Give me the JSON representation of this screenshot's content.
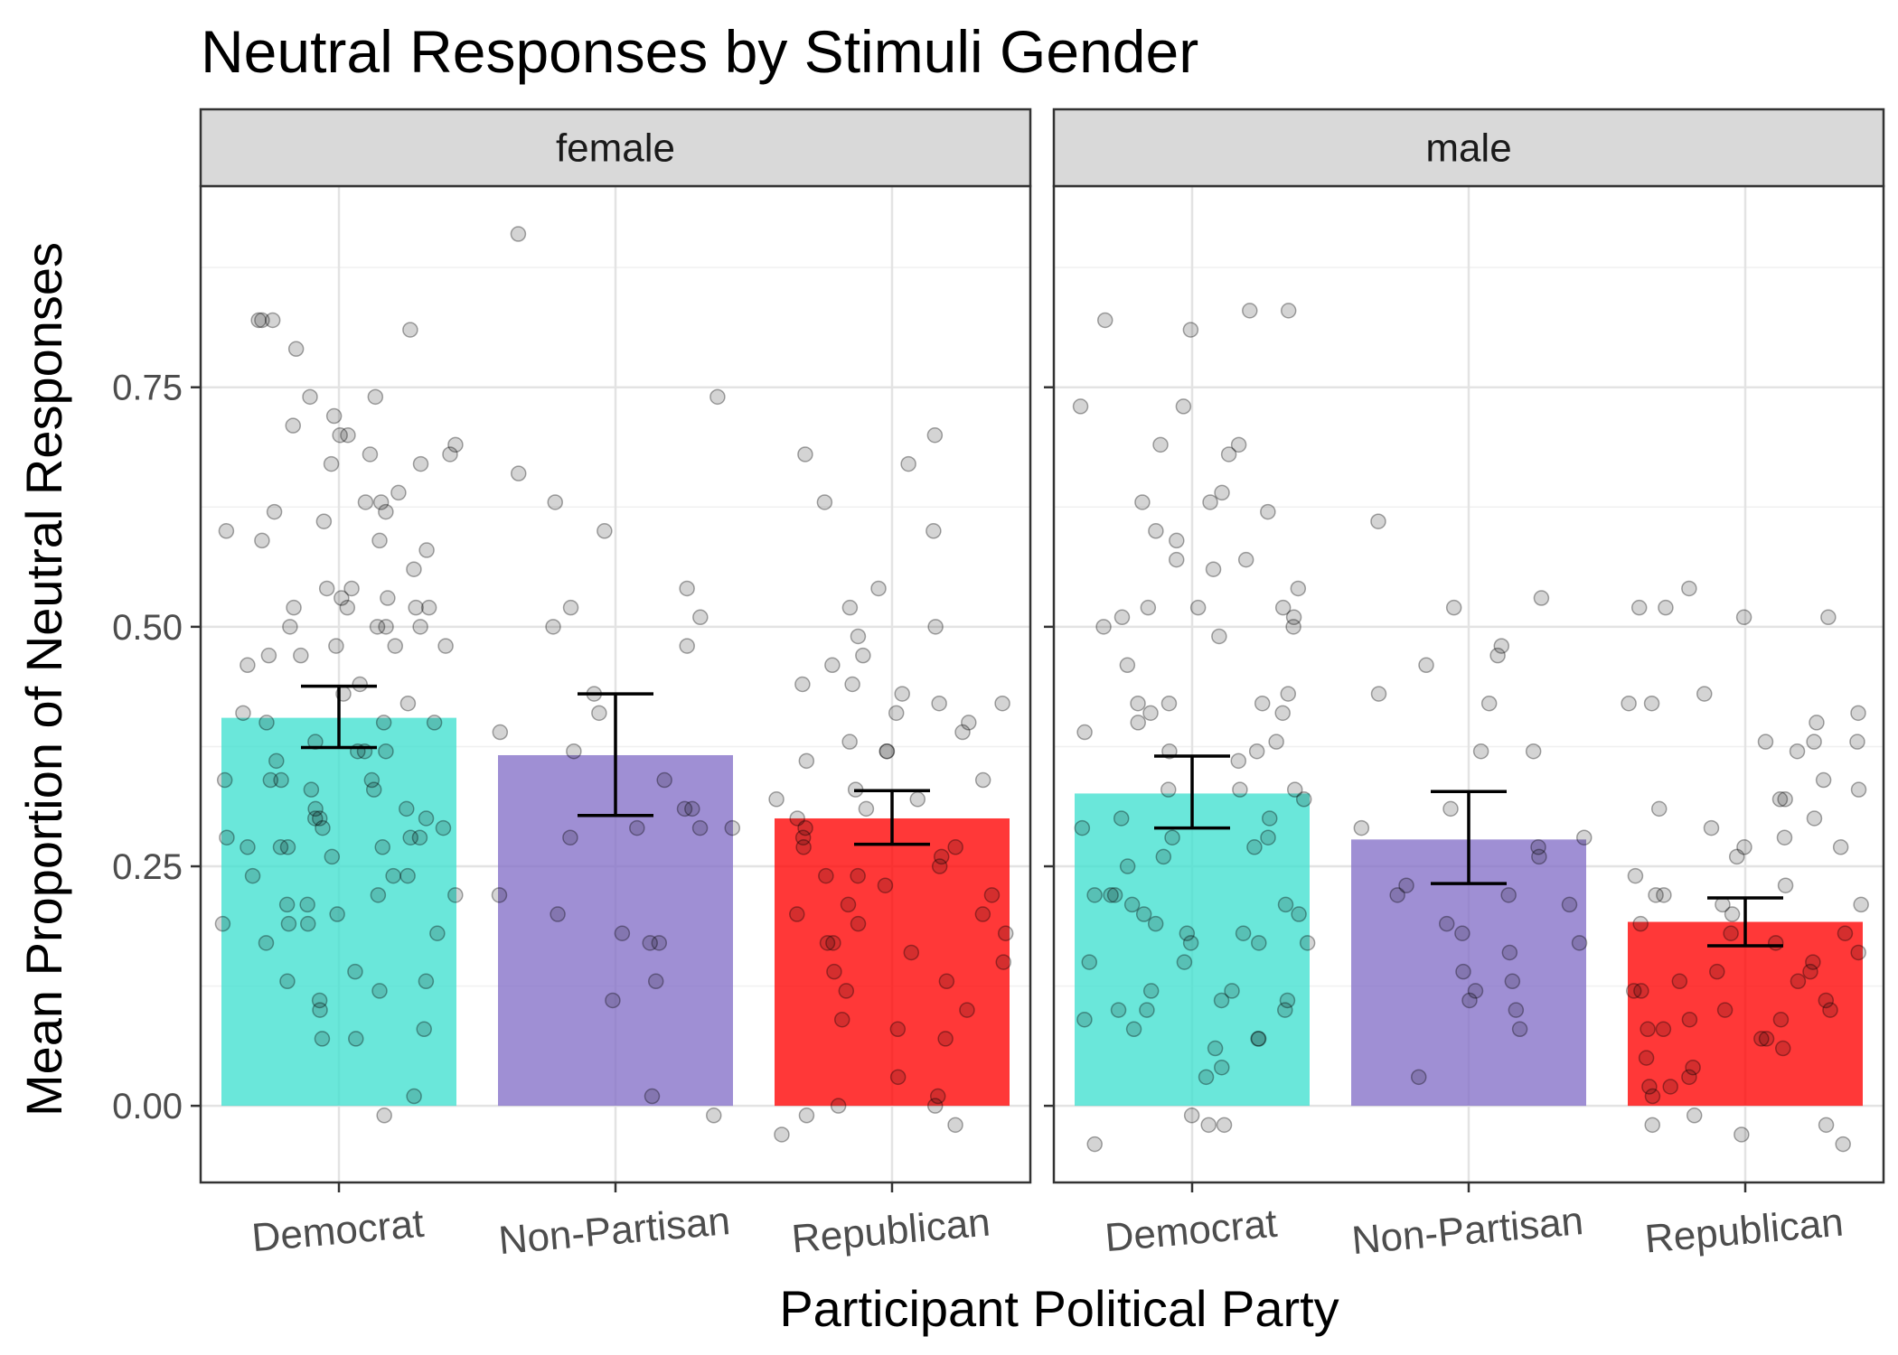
{
  "chart_data": {
    "type": "bar",
    "title": "Neutral Responses by Stimuli Gender",
    "xlabel": "Participant Political Party",
    "ylabel": "Mean Proportion of Neutral Responses",
    "ylim": [
      -0.08,
      0.96
    ],
    "y_ticks": [
      "0.00",
      "0.25",
      "0.50",
      "0.75"
    ],
    "y_tick_values": [
      0,
      0.25,
      0.5,
      0.75
    ],
    "grid": true,
    "legend": "none",
    "overlay": "jittered-points",
    "categories": [
      "Democrat",
      "Non-Partisan",
      "Republican"
    ],
    "colors": {
      "Democrat": "#40E0D0",
      "Non-Partisan": "#8470C8",
      "Republican": "#FF0000"
    },
    "facets": [
      {
        "label": "female",
        "values": [
          0.405,
          0.366,
          0.3
        ],
        "error_low": [
          0.374,
          0.303,
          0.273
        ],
        "error_high": [
          0.438,
          0.43,
          0.329
        ],
        "points": [
          [
            0.74,
            0.71,
            0.68,
            0.69,
            0.63,
            0.59,
            0.59,
            0.52,
            0.53,
            0.52,
            0.48,
            0.47,
            0.42,
            0.4,
            0.37,
            0.36,
            0.34,
            0.31,
            0.3,
            0.28,
            0.27,
            0.26,
            0.24,
            0.21,
            0.21,
            0.19,
            0.18,
            0.13,
            0.1,
            0.07,
            0.01,
            0.82,
            0.82,
            0.79,
            0.74,
            0.7,
            0.68,
            0.67,
            0.64,
            0.62,
            0.61,
            0.58,
            0.56,
            0.52,
            0.52,
            0.5,
            0.5,
            0.46,
            0.44,
            0.41,
            0.4,
            0.38,
            0.37,
            0.34,
            0.33,
            0.31,
            0.3,
            0.29,
            0.29,
            0.28,
            0.27,
            0.24,
            0.22,
            0.19,
            0.19,
            0.13,
            0.11,
            0.82,
            0.81,
            0.72,
            0.7,
            0.67,
            0.63,
            0.62,
            0.6,
            0.54,
            0.54,
            0.53,
            0.5,
            0.5,
            0.48,
            0.48,
            0.47,
            0.43,
            0.4,
            0.37,
            0.34,
            0.34,
            0.33,
            0.3,
            0.28,
            0.27,
            0.27,
            0.24,
            0.22,
            0.2,
            0.17,
            0.14,
            0.12,
            0.08,
            0.07,
            -0.01
          ],
          [
            0.91,
            0.74,
            0.66,
            0.63,
            0.6,
            0.54,
            0.52,
            0.51,
            0.5,
            0.48,
            0.43,
            0.41,
            0.39,
            0.37,
            0.34,
            0.31,
            0.31,
            0.29,
            0.29,
            0.29,
            0.28,
            0.22,
            0.2,
            0.18,
            0.17,
            0.17,
            0.13,
            0.11,
            0.01,
            -0.01
          ],
          [
            0.7,
            0.68,
            0.67,
            0.63,
            0.6,
            0.54,
            0.52,
            0.5,
            0.49,
            0.47,
            0.46,
            0.44,
            0.44,
            0.43,
            0.42,
            0.42,
            0.41,
            0.4,
            0.39,
            0.38,
            0.37,
            0.37,
            0.36,
            0.34,
            0.33,
            0.32,
            0.32,
            0.31,
            0.3,
            0.29,
            0.28,
            0.27,
            0.27,
            0.26,
            0.25,
            0.24,
            0.24,
            0.23,
            0.22,
            0.21,
            0.2,
            0.2,
            0.19,
            0.18,
            0.17,
            0.17,
            0.16,
            0.15,
            0.14,
            0.13,
            0.12,
            0.1,
            0.09,
            0.08,
            0.07,
            0.03,
            0.01,
            0.0,
            0.0,
            -0.01,
            -0.02,
            -0.03
          ]
        ]
      },
      {
        "label": "male",
        "values": [
          0.326,
          0.278,
          0.192
        ],
        "error_low": [
          0.29,
          0.232,
          0.167
        ],
        "error_high": [
          0.365,
          0.328,
          0.217
        ],
        "points": [
          [
            0.82,
            0.81,
            0.73,
            0.69,
            0.69,
            0.64,
            0.63,
            0.6,
            0.59,
            0.57,
            0.56,
            0.52,
            0.51,
            0.5,
            0.49,
            0.42,
            0.41,
            0.4,
            0.39,
            0.37,
            0.33,
            0.33,
            0.32,
            0.29,
            0.28,
            0.26,
            0.22,
            0.21,
            0.2,
            0.2,
            0.18,
            0.17,
            0.17,
            0.15,
            0.12,
            0.1,
            0.1,
            0.07,
            0.06,
            0.04,
            0.03,
            -0.04,
            0.83,
            0.83,
            0.73,
            0.68,
            0.63,
            0.62,
            0.57,
            0.54,
            0.52,
            0.52,
            0.51,
            0.5,
            0.46,
            0.43,
            0.42,
            0.42,
            0.41,
            0.38,
            0.37,
            0.36,
            0.33,
            0.3,
            0.3,
            0.28,
            0.27,
            0.25,
            0.22,
            0.22,
            0.21,
            0.19,
            0.18,
            0.17,
            0.15,
            0.12,
            0.11,
            0.11,
            0.1,
            0.09,
            0.08,
            0.07,
            -0.01,
            -0.02,
            -0.02
          ],
          [
            0.61,
            0.53,
            0.52,
            0.48,
            0.47,
            0.46,
            0.43,
            0.42,
            0.37,
            0.37,
            0.31,
            0.29,
            0.28,
            0.27,
            0.26,
            0.23,
            0.22,
            0.22,
            0.21,
            0.19,
            0.18,
            0.17,
            0.16,
            0.14,
            0.13,
            0.12,
            0.11,
            0.1,
            0.08,
            0.03
          ],
          [
            0.54,
            0.52,
            0.52,
            0.51,
            0.51,
            0.43,
            0.42,
            0.42,
            0.41,
            0.4,
            0.38,
            0.38,
            0.38,
            0.37,
            0.34,
            0.33,
            0.32,
            0.32,
            0.31,
            0.3,
            0.29,
            0.28,
            0.27,
            0.27,
            0.26,
            0.24,
            0.23,
            0.22,
            0.22,
            0.21,
            0.21,
            0.2,
            0.19,
            0.18,
            0.18,
            0.17,
            0.16,
            0.15,
            0.14,
            0.14,
            0.13,
            0.13,
            0.12,
            0.12,
            0.11,
            0.1,
            0.1,
            0.09,
            0.09,
            0.08,
            0.08,
            0.07,
            0.07,
            0.06,
            0.05,
            0.04,
            0.03,
            0.02,
            0.02,
            0.01,
            -0.01,
            -0.02,
            -0.02,
            -0.03,
            -0.04
          ]
        ]
      }
    ]
  }
}
